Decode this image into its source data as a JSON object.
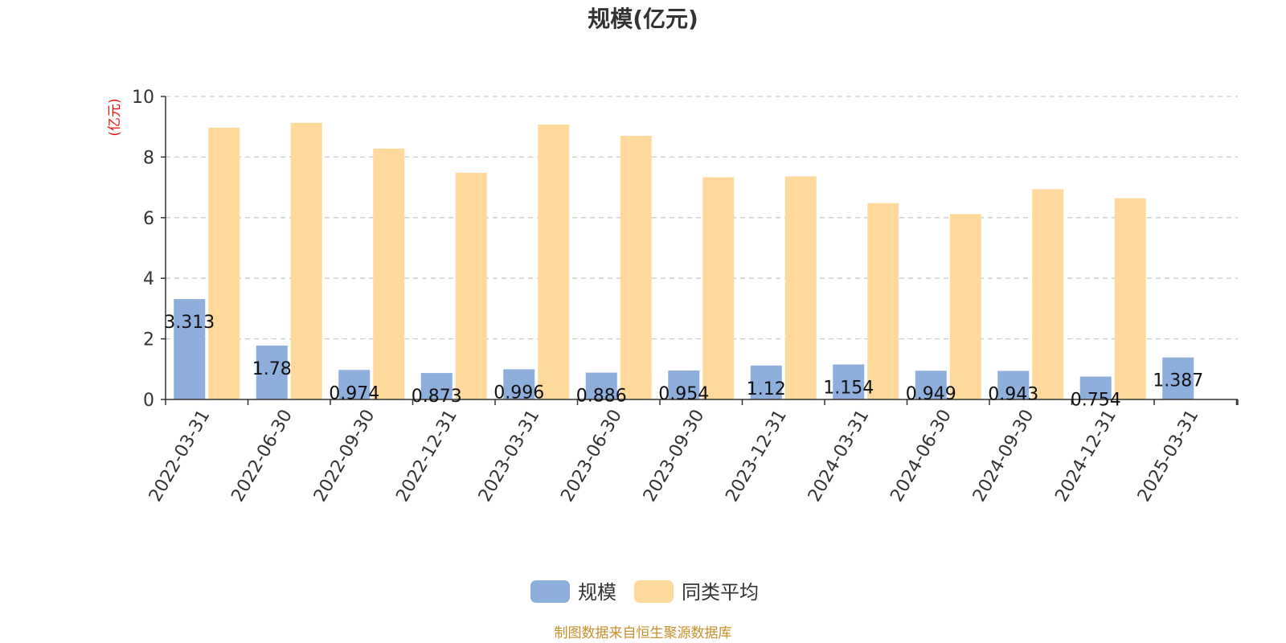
{
  "chart_data": {
    "type": "bar",
    "title": "规模(亿元)",
    "ylabel": "(亿元)",
    "xlabel": "",
    "ylim": [
      0,
      10
    ],
    "yticks": [
      0,
      2,
      4,
      6,
      8,
      10
    ],
    "grid": true,
    "legend_position": "bottom-center",
    "categories": [
      "2022-03-31",
      "2022-06-30",
      "2022-09-30",
      "2022-12-31",
      "2023-03-31",
      "2023-06-30",
      "2023-09-30",
      "2023-12-31",
      "2024-03-31",
      "2024-06-30",
      "2024-09-30",
      "2024-12-31",
      "2025-03-31"
    ],
    "series": [
      {
        "name": "规模",
        "color": "#8eafdc",
        "values": [
          3.313,
          1.78,
          0.974,
          0.873,
          0.996,
          0.886,
          0.954,
          1.12,
          1.154,
          0.949,
          0.943,
          0.754,
          1.387
        ],
        "labels": [
          "3.313",
          "1.78",
          "0.974",
          "0.873",
          "0.996",
          "0.886",
          "0.954",
          "1.12",
          "1.154",
          "0.949",
          "0.943",
          "0.754",
          "1.387"
        ]
      },
      {
        "name": "同类平均",
        "color": "#fed99b",
        "values": [
          8.97,
          9.13,
          8.28,
          7.48,
          9.07,
          8.7,
          7.33,
          7.36,
          6.48,
          6.12,
          6.94,
          6.64,
          null
        ]
      }
    ]
  },
  "source_note": "制图数据来自恒生聚源数据库"
}
